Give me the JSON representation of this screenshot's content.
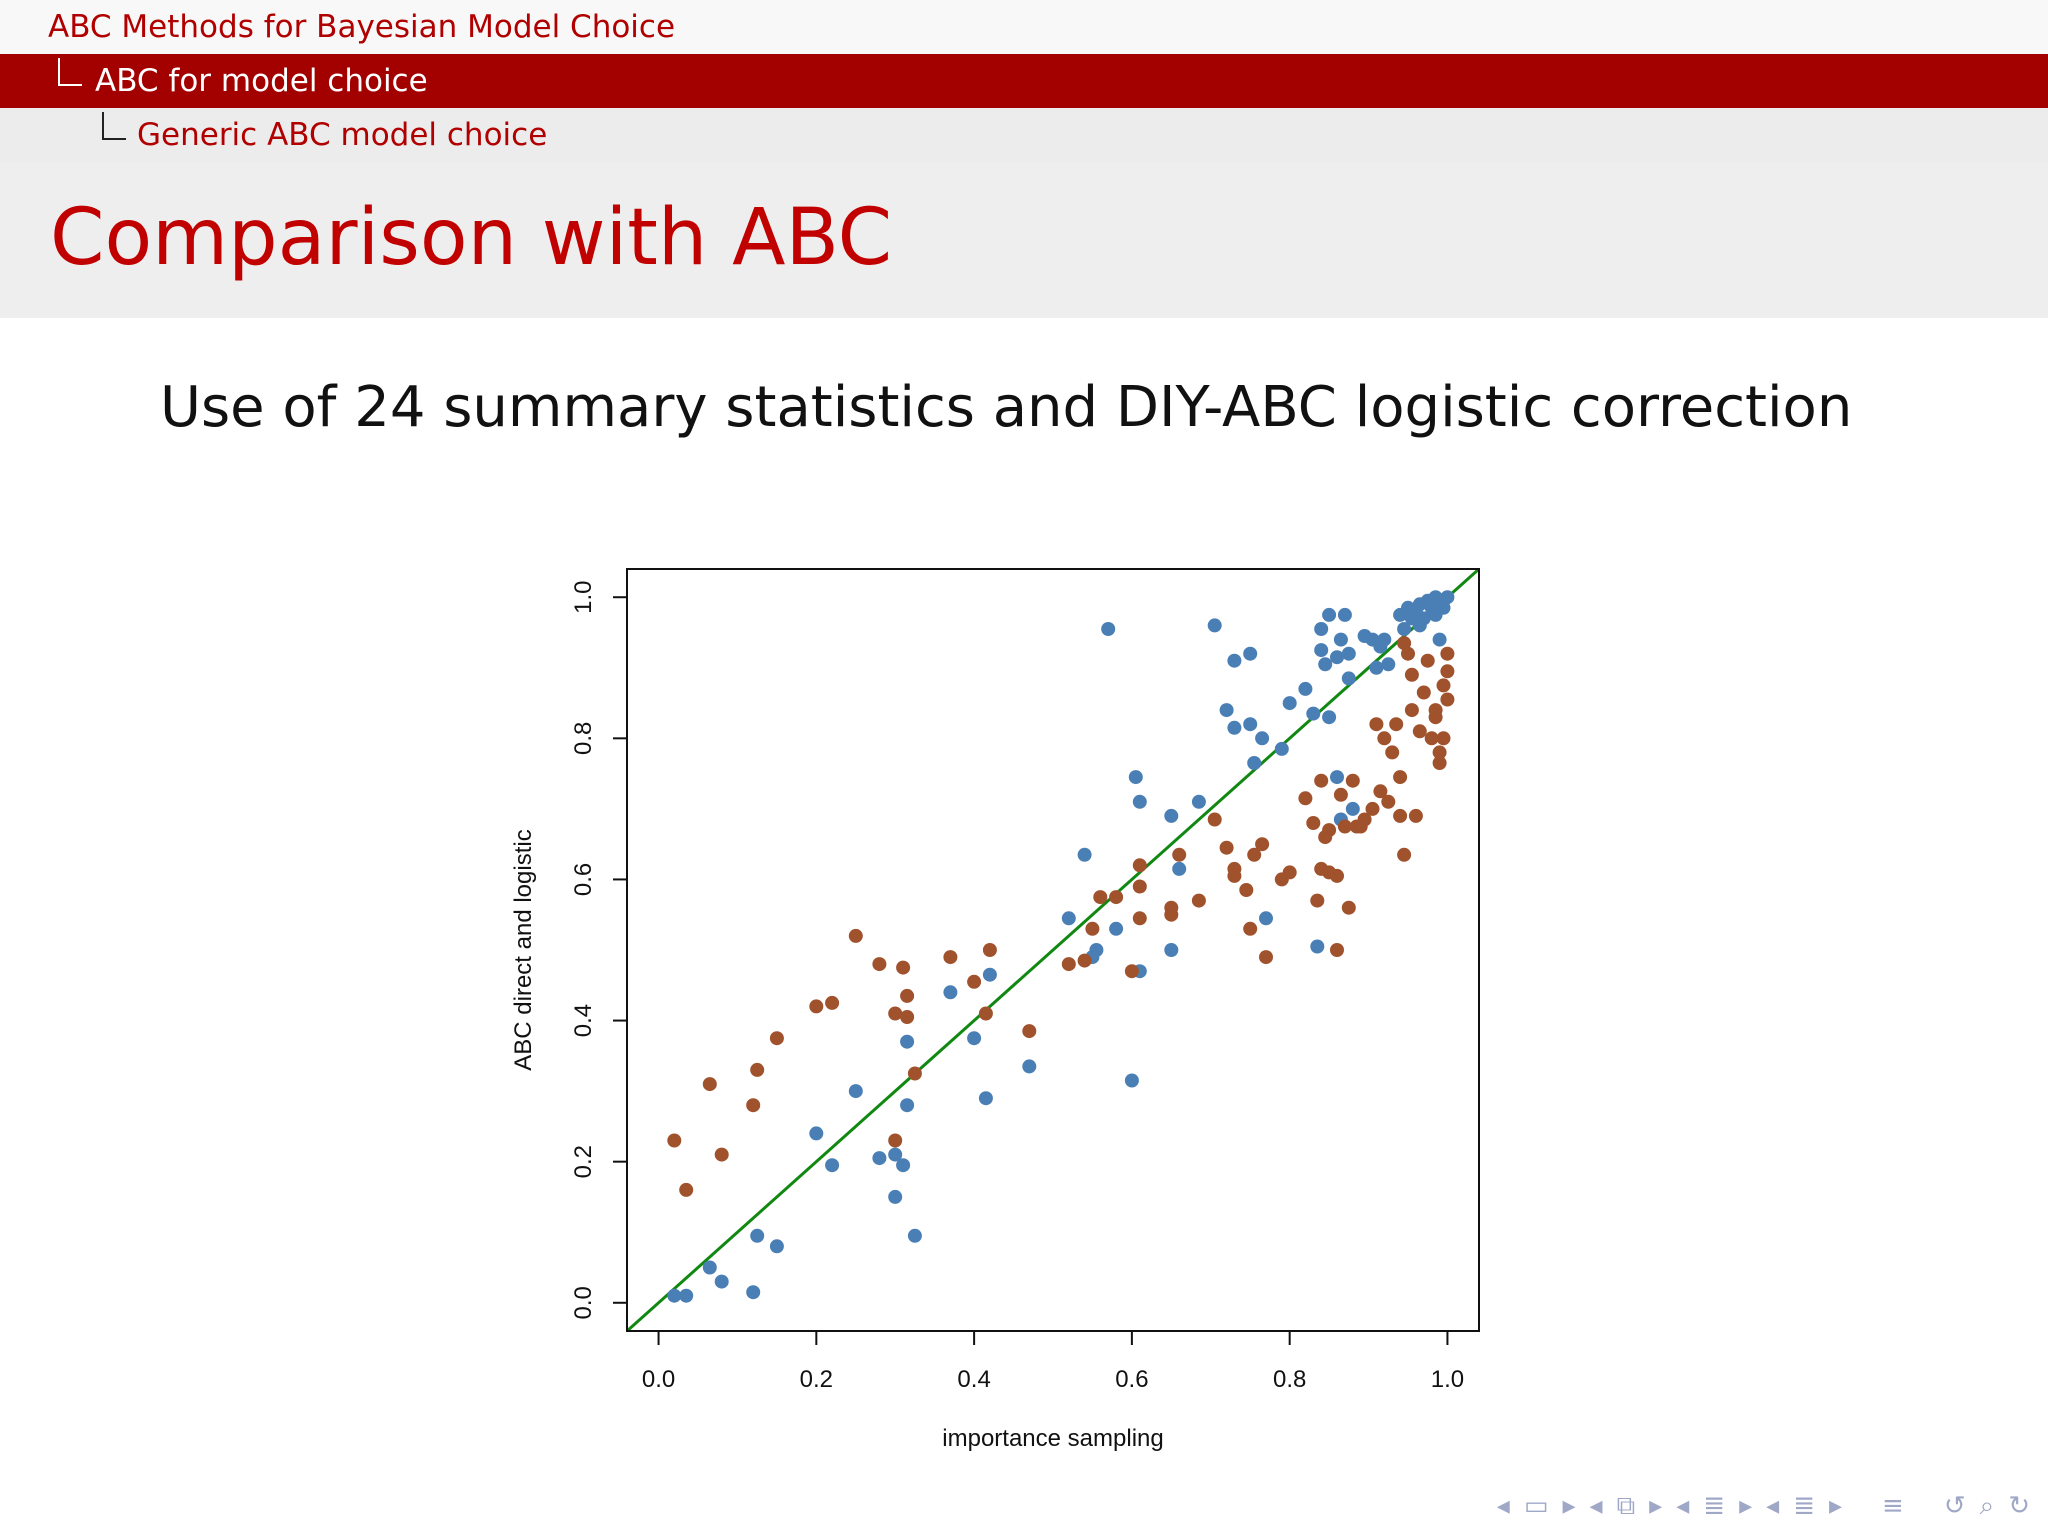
{
  "breadcrumb": {
    "level1": "ABC Methods for Bayesian Model Choice",
    "level2": "ABC for model choice",
    "level3": "Generic ABC model choice"
  },
  "frame": {
    "title": "Comparison with ABC",
    "subtitle": "Use of 24 summary statistics and DIY-ABC logistic correction"
  },
  "nav": {
    "icons": [
      "nav-prev-frame-icon",
      "nav-frame-icon",
      "nav-next-frame-icon",
      "nav-prev-subsection-icon",
      "nav-subsection-icon",
      "nav-next-subsection-icon",
      "nav-prev-section-icon",
      "nav-section-icon",
      "nav-next-section-icon",
      "nav-prev-part-icon",
      "nav-part-icon",
      "nav-next-part-icon",
      "nav-toc-icon",
      "nav-back-icon",
      "nav-search-icon"
    ]
  },
  "colors": {
    "blue": "#4a7fb5",
    "brown": "#a0522d",
    "diagonal": "#118811"
  },
  "chart_data": {
    "type": "scatter",
    "title": "",
    "xlabel": "importance sampling",
    "ylabel": "ABC direct and logistic",
    "xlim": [
      -0.04,
      1.04
    ],
    "ylim": [
      -0.04,
      1.04
    ],
    "xticks": [
      "0.0",
      "0.2",
      "0.4",
      "0.6",
      "0.8",
      "1.0"
    ],
    "yticks": [
      "0.0",
      "0.2",
      "0.4",
      "0.6",
      "0.8",
      "1.0"
    ],
    "xtick_values": [
      0.0,
      0.2,
      0.4,
      0.6,
      0.8,
      1.0
    ],
    "ytick_values": [
      0.0,
      0.2,
      0.4,
      0.6,
      0.8,
      1.0
    ],
    "grid": false,
    "reference_line": {
      "from": [
        -0.04,
        -0.04
      ],
      "to": [
        1.04,
        1.04
      ]
    },
    "series": [
      {
        "color": "#4a7fb5",
        "points": [
          [
            0.02,
            0.01
          ],
          [
            0.035,
            0.01
          ],
          [
            0.065,
            0.05
          ],
          [
            0.08,
            0.03
          ],
          [
            0.12,
            0.015
          ],
          [
            0.125,
            0.095
          ],
          [
            0.15,
            0.08
          ],
          [
            0.2,
            0.24
          ],
          [
            0.22,
            0.195
          ],
          [
            0.25,
            0.3
          ],
          [
            0.28,
            0.205
          ],
          [
            0.3,
            0.21
          ],
          [
            0.3,
            0.15
          ],
          [
            0.31,
            0.195
          ],
          [
            0.315,
            0.28
          ],
          [
            0.315,
            0.37
          ],
          [
            0.325,
            0.095
          ],
          [
            0.37,
            0.44
          ],
          [
            0.4,
            0.375
          ],
          [
            0.415,
            0.29
          ],
          [
            0.42,
            0.465
          ],
          [
            0.47,
            0.335
          ],
          [
            0.52,
            0.545
          ],
          [
            0.54,
            0.635
          ],
          [
            0.55,
            0.49
          ],
          [
            0.555,
            0.5
          ],
          [
            0.58,
            0.53
          ],
          [
            0.57,
            0.955
          ],
          [
            0.6,
            0.315
          ],
          [
            0.605,
            0.745
          ],
          [
            0.61,
            0.47
          ],
          [
            0.61,
            0.71
          ],
          [
            0.65,
            0.69
          ],
          [
            0.65,
            0.5
          ],
          [
            0.66,
            0.615
          ],
          [
            0.685,
            0.71
          ],
          [
            0.705,
            0.96
          ],
          [
            0.72,
            0.84
          ],
          [
            0.73,
            0.91
          ],
          [
            0.73,
            0.815
          ],
          [
            0.75,
            0.92
          ],
          [
            0.75,
            0.82
          ],
          [
            0.755,
            0.765
          ],
          [
            0.765,
            0.8
          ],
          [
            0.77,
            0.545
          ],
          [
            0.79,
            0.785
          ],
          [
            0.8,
            0.85
          ],
          [
            0.82,
            0.87
          ],
          [
            0.83,
            0.835
          ],
          [
            0.835,
            0.505
          ],
          [
            0.84,
            0.955
          ],
          [
            0.84,
            0.925
          ],
          [
            0.845,
            0.905
          ],
          [
            0.85,
            0.83
          ],
          [
            0.85,
            0.975
          ],
          [
            0.86,
            0.745
          ],
          [
            0.86,
            0.915
          ],
          [
            0.865,
            0.94
          ],
          [
            0.865,
            0.685
          ],
          [
            0.87,
            0.975
          ],
          [
            0.875,
            0.92
          ],
          [
            0.875,
            0.885
          ],
          [
            0.88,
            0.7
          ],
          [
            0.895,
            0.945
          ],
          [
            0.905,
            0.94
          ],
          [
            0.91,
            0.9
          ],
          [
            0.915,
            0.93
          ],
          [
            0.92,
            0.94
          ],
          [
            0.925,
            0.905
          ],
          [
            0.94,
            0.975
          ],
          [
            0.945,
            0.955
          ],
          [
            0.95,
            0.985
          ],
          [
            0.955,
            0.97
          ],
          [
            0.96,
            0.98
          ],
          [
            0.965,
            0.99
          ],
          [
            0.965,
            0.96
          ],
          [
            0.97,
            0.97
          ],
          [
            0.975,
            0.995
          ],
          [
            0.98,
            0.985
          ],
          [
            0.985,
            1.0
          ],
          [
            0.985,
            0.975
          ],
          [
            0.99,
            0.995
          ],
          [
            0.99,
            0.94
          ],
          [
            0.995,
            0.985
          ],
          [
            1.0,
            1.0
          ],
          [
            0.995,
            0.995
          ]
        ]
      },
      {
        "color": "#a0522d",
        "points": [
          [
            0.02,
            0.23
          ],
          [
            0.035,
            0.16
          ],
          [
            0.065,
            0.31
          ],
          [
            0.08,
            0.21
          ],
          [
            0.12,
            0.28
          ],
          [
            0.125,
            0.33
          ],
          [
            0.15,
            0.375
          ],
          [
            0.2,
            0.42
          ],
          [
            0.22,
            0.425
          ],
          [
            0.25,
            0.52
          ],
          [
            0.28,
            0.48
          ],
          [
            0.3,
            0.41
          ],
          [
            0.3,
            0.23
          ],
          [
            0.31,
            0.475
          ],
          [
            0.315,
            0.435
          ],
          [
            0.315,
            0.405
          ],
          [
            0.325,
            0.325
          ],
          [
            0.37,
            0.49
          ],
          [
            0.4,
            0.455
          ],
          [
            0.415,
            0.41
          ],
          [
            0.42,
            0.5
          ],
          [
            0.47,
            0.385
          ],
          [
            0.52,
            0.48
          ],
          [
            0.54,
            0.485
          ],
          [
            0.55,
            0.53
          ],
          [
            0.56,
            0.575
          ],
          [
            0.58,
            0.575
          ],
          [
            0.6,
            0.47
          ],
          [
            0.61,
            0.545
          ],
          [
            0.61,
            0.62
          ],
          [
            0.61,
            0.59
          ],
          [
            0.65,
            0.56
          ],
          [
            0.65,
            0.55
          ],
          [
            0.66,
            0.635
          ],
          [
            0.685,
            0.57
          ],
          [
            0.705,
            0.685
          ],
          [
            0.72,
            0.645
          ],
          [
            0.73,
            0.615
          ],
          [
            0.73,
            0.605
          ],
          [
            0.745,
            0.585
          ],
          [
            0.75,
            0.53
          ],
          [
            0.755,
            0.635
          ],
          [
            0.765,
            0.65
          ],
          [
            0.77,
            0.49
          ],
          [
            0.79,
            0.6
          ],
          [
            0.8,
            0.61
          ],
          [
            0.82,
            0.715
          ],
          [
            0.83,
            0.68
          ],
          [
            0.835,
            0.57
          ],
          [
            0.84,
            0.615
          ],
          [
            0.84,
            0.74
          ],
          [
            0.845,
            0.66
          ],
          [
            0.85,
            0.61
          ],
          [
            0.85,
            0.67
          ],
          [
            0.86,
            0.605
          ],
          [
            0.86,
            0.5
          ],
          [
            0.865,
            0.72
          ],
          [
            0.87,
            0.675
          ],
          [
            0.875,
            0.56
          ],
          [
            0.88,
            0.74
          ],
          [
            0.885,
            0.675
          ],
          [
            0.89,
            0.675
          ],
          [
            0.895,
            0.685
          ],
          [
            0.905,
            0.7
          ],
          [
            0.91,
            0.82
          ],
          [
            0.915,
            0.725
          ],
          [
            0.92,
            0.8
          ],
          [
            0.925,
            0.71
          ],
          [
            0.93,
            0.78
          ],
          [
            0.935,
            0.82
          ],
          [
            0.94,
            0.745
          ],
          [
            0.94,
            0.69
          ],
          [
            0.945,
            0.635
          ],
          [
            0.95,
            0.92
          ],
          [
            0.955,
            0.89
          ],
          [
            0.955,
            0.84
          ],
          [
            0.965,
            0.81
          ],
          [
            0.97,
            0.865
          ],
          [
            0.975,
            0.91
          ],
          [
            0.98,
            0.8
          ],
          [
            0.985,
            0.83
          ],
          [
            0.985,
            0.84
          ],
          [
            0.99,
            0.78
          ],
          [
            0.99,
            0.765
          ],
          [
            0.995,
            0.875
          ],
          [
            1.0,
            0.895
          ],
          [
            1.0,
            0.92
          ],
          [
            1.0,
            0.855
          ],
          [
            0.995,
            0.8
          ],
          [
            0.96,
            0.69
          ],
          [
            0.945,
            0.935
          ]
        ]
      }
    ]
  }
}
